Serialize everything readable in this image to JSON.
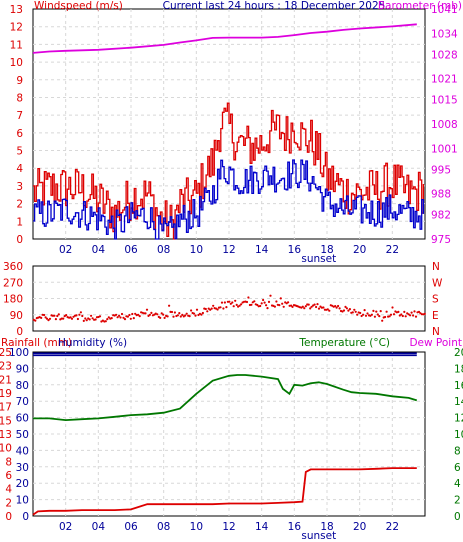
{
  "colors": {
    "wind_gust": "#dd0000",
    "wind_avg": "#0000cc",
    "barometer": "#dd00dd",
    "wind_dir": "#dd0000",
    "rain": "#dd0000",
    "humidity": "#000099",
    "temperature": "#007700",
    "dew_point": "#dd00dd",
    "sunset_text": "#000099",
    "axis_text": "#000099"
  },
  "header": {
    "title": "Current last 24 hours : 18 December 2025"
  },
  "chart_data": [
    {
      "type": "line",
      "name": "wind-barometer",
      "x_ticks": [
        "02",
        "04",
        "06",
        "08",
        "10",
        "12",
        "14",
        "16",
        "18",
        "20",
        "22"
      ],
      "x_range_hours": [
        0,
        24
      ],
      "sunset_label": "sunset",
      "sunset_hour": 17.5,
      "left_axis": {
        "label": "Windspeed (m/s)",
        "range": [
          0,
          13
        ],
        "ticks": [
          "0",
          "1",
          "2",
          "3",
          "4",
          "5",
          "6",
          "7",
          "8",
          "9",
          "10",
          "11",
          "12",
          "13"
        ]
      },
      "right_axis": {
        "label": "Barometer (mb)",
        "range": [
          975,
          1041
        ],
        "ticks": [
          "975",
          "982",
          "988",
          "995",
          "1001",
          "1008",
          "1015",
          "1021",
          "1028",
          "1034",
          "1041"
        ]
      },
      "series": [
        {
          "name": "Wind gust",
          "axis": "left",
          "kind": "step-noisy",
          "x": [
            0,
            1,
            2,
            3,
            4,
            5,
            6,
            7,
            7.8,
            8.5,
            9,
            10,
            10.5,
            11,
            11.5,
            12,
            12.5,
            13,
            13.5,
            14,
            14.5,
            15,
            15.5,
            16,
            16.5,
            17,
            17.5,
            18,
            18.5,
            19,
            19.5,
            20,
            21,
            22,
            23,
            23.5
          ],
          "y": [
            2.6,
            2.9,
            2.9,
            2.8,
            2.2,
            1.4,
            2.4,
            2.5,
            1.1,
            0.8,
            2.0,
            2.4,
            3.6,
            4.3,
            6.7,
            6.3,
            5.4,
            5.3,
            5.2,
            5.4,
            6.0,
            6.2,
            5.9,
            6.5,
            5.7,
            5.6,
            4.7,
            3.4,
            3.2,
            2.7,
            2.6,
            2.6,
            2.8,
            3.2,
            2.5,
            2.7
          ],
          "amplitude": 1.3
        },
        {
          "name": "Wind speed",
          "axis": "left",
          "kind": "step-noisy",
          "x": [
            0,
            1,
            2,
            3,
            4,
            5,
            6,
            7,
            7.8,
            8.5,
            9,
            10,
            10.5,
            11,
            11.5,
            12,
            12.5,
            13,
            13.5,
            14,
            14.5,
            15,
            15.5,
            16,
            16.5,
            17,
            17.5,
            18,
            18.5,
            19,
            19.5,
            20,
            21,
            22,
            23,
            23.5
          ],
          "y": [
            1.4,
            1.4,
            1.7,
            1.4,
            1.2,
            0.7,
            1.2,
            1.4,
            0.3,
            0.4,
            1.1,
            1.4,
            2.0,
            2.6,
            3.8,
            3.9,
            3.3,
            3.3,
            3.4,
            3.5,
            3.6,
            3.5,
            3.6,
            3.7,
            3.7,
            3.4,
            2.7,
            2.0,
            1.9,
            1.6,
            1.6,
            1.6,
            1.5,
            1.7,
            1.3,
            1.4
          ],
          "amplitude": 0.9
        },
        {
          "name": "Barometer",
          "axis": "right",
          "kind": "line",
          "x": [
            0,
            1,
            2,
            4,
            6,
            8,
            9,
            10,
            11,
            12,
            13,
            14,
            15,
            16,
            17,
            18,
            19,
            20,
            22,
            23.5
          ],
          "y": [
            1028.4,
            1028.8,
            1029.0,
            1029.3,
            1029.9,
            1030.7,
            1031.4,
            1032.0,
            1032.7,
            1032.8,
            1032.8,
            1032.8,
            1033.0,
            1033.5,
            1034.1,
            1034.5,
            1035.0,
            1035.4,
            1036.0,
            1036.6
          ]
        }
      ]
    },
    {
      "type": "scatter",
      "name": "wind-direction",
      "x_range_hours": [
        0,
        24
      ],
      "y_range": [
        0,
        360
      ],
      "left_ticks": [
        "0",
        "90",
        "180",
        "270",
        "360"
      ],
      "right_ticks": [
        "N",
        "E",
        "S",
        "W",
        "N"
      ],
      "series": [
        {
          "name": "Wind direction",
          "kind": "band",
          "x": [
            0,
            2,
            4,
            6,
            8,
            10,
            11,
            12,
            14,
            16,
            17,
            18,
            19,
            20,
            22,
            23.5
          ],
          "y": [
            70,
            80,
            65,
            85,
            90,
            100,
            125,
            150,
            155,
            150,
            140,
            130,
            120,
            100,
            90,
            95
          ],
          "spread": 18
        }
      ]
    },
    {
      "type": "line",
      "name": "rain-humidity-temperature",
      "x_ticks": [
        "02",
        "04",
        "06",
        "08",
        "10",
        "12",
        "14",
        "16",
        "18",
        "20",
        "22"
      ],
      "x_range_hours": [
        0,
        24
      ],
      "sunset_label": "sunset",
      "sunset_hour": 17.5,
      "rain_axis": {
        "label": "Rainfall (mm)",
        "range": [
          0,
          25
        ],
        "ticks": [
          "0",
          "2",
          "4",
          "6",
          "8",
          "10",
          "13",
          "15",
          "17",
          "19",
          "21",
          "23",
          "25"
        ]
      },
      "humidity_axis": {
        "label": "Humidity (%)",
        "range": [
          0,
          100
        ],
        "ticks": [
          "0",
          "10",
          "20",
          "30",
          "40",
          "50",
          "60",
          "70",
          "80",
          "90",
          "100"
        ]
      },
      "temp_axis": {
        "label": "Temperature (°C)",
        "range": [
          0,
          20
        ],
        "ticks": [
          "0",
          "2",
          "4",
          "6",
          "8",
          "10",
          "12",
          "14",
          "16",
          "18",
          "20"
        ]
      },
      "dew_label": "Dew Point",
      "series": [
        {
          "name": "Humidity",
          "axis": "humidity",
          "kind": "line",
          "x": [
            0,
            23.5
          ],
          "y": [
            99.2,
            99.2
          ]
        },
        {
          "name": "Humidity",
          "axis": "humidity",
          "kind": "line",
          "x": [
            0,
            23.5
          ],
          "y": [
            98.0,
            98.0
          ]
        },
        {
          "name": "Temperature",
          "axis": "temp",
          "kind": "line",
          "x": [
            0,
            1,
            2,
            3,
            4,
            5,
            6,
            7,
            8,
            9,
            10,
            11,
            12,
            12.5,
            13,
            14,
            15,
            15.3,
            15.7,
            16,
            16.5,
            17,
            17.5,
            18,
            19,
            19.5,
            20,
            21,
            22,
            23,
            23.5
          ],
          "y": [
            11.9,
            11.9,
            11.7,
            11.8,
            11.9,
            12.1,
            12.3,
            12.4,
            12.6,
            13.1,
            14.9,
            16.5,
            17.1,
            17.2,
            17.2,
            17.0,
            16.7,
            15.5,
            14.9,
            16.0,
            15.9,
            16.2,
            16.3,
            16.1,
            15.4,
            15.1,
            15.0,
            14.9,
            14.6,
            14.4,
            14.1
          ]
        },
        {
          "name": "Rainfall",
          "axis": "rain",
          "kind": "step",
          "x": [
            0,
            0.3,
            1,
            2,
            3,
            4,
            5,
            6,
            7,
            8,
            9,
            10,
            11,
            12,
            13,
            14,
            15,
            16,
            16.5,
            16.7,
            17,
            18,
            19,
            20,
            21,
            22,
            23,
            23.5
          ],
          "y": [
            0.2,
            0.7,
            0.8,
            0.8,
            0.9,
            0.9,
            0.9,
            1.0,
            1.8,
            1.8,
            1.8,
            1.8,
            1.8,
            1.9,
            1.9,
            1.9,
            2.0,
            2.1,
            2.2,
            6.7,
            7.1,
            7.1,
            7.1,
            7.1,
            7.2,
            7.3,
            7.3,
            7.3
          ]
        }
      ]
    }
  ]
}
